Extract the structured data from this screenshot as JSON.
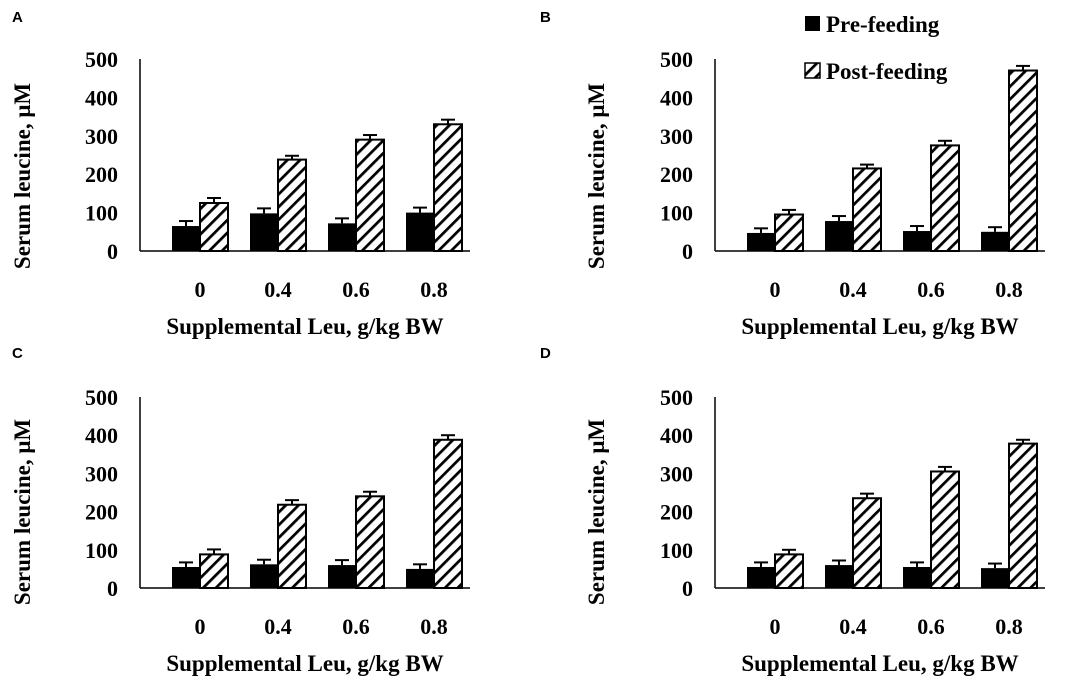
{
  "legend": {
    "items": [
      {
        "label": "Pre-feeding",
        "style": "solid"
      },
      {
        "label": "Post-feeding",
        "style": "hatched"
      }
    ]
  },
  "colors": {
    "bar": "#000000",
    "background": "#ffffff"
  },
  "chart_data": [
    {
      "panel": "A",
      "type": "bar",
      "categories": [
        "0",
        "0.4",
        "0.6",
        "0.8"
      ],
      "series": [
        {
          "name": "Pre-feeding",
          "values": [
            65,
            98,
            72,
            100
          ],
          "errors": [
            13,
            13,
            13,
            13
          ]
        },
        {
          "name": "Post-feeding",
          "values": [
            125,
            238,
            290,
            330
          ],
          "errors": [
            13,
            10,
            12,
            12
          ]
        }
      ],
      "title": "",
      "xlabel": "Supplemental Leu, g/kg BW",
      "ylabel": "Serum leucine, μM",
      "ylim": [
        0,
        500
      ],
      "yticks": [
        0,
        100,
        200,
        300,
        400,
        500
      ],
      "grid": false
    },
    {
      "panel": "B",
      "type": "bar",
      "categories": [
        "0",
        "0.4",
        "0.6",
        "0.8"
      ],
      "series": [
        {
          "name": "Pre-feeding",
          "values": [
            47,
            78,
            52,
            50
          ],
          "errors": [
            12,
            13,
            13,
            12
          ]
        },
        {
          "name": "Post-feeding",
          "values": [
            95,
            215,
            275,
            470
          ],
          "errors": [
            12,
            10,
            12,
            12
          ]
        }
      ],
      "title": "",
      "xlabel": "Supplemental Leu, g/kg BW",
      "ylabel": "Serum leucine, μM",
      "ylim": [
        0,
        500
      ],
      "yticks": [
        0,
        100,
        200,
        300,
        400,
        500
      ],
      "grid": false
    },
    {
      "panel": "C",
      "type": "bar",
      "categories": [
        "0",
        "0.4",
        "0.6",
        "0.8"
      ],
      "series": [
        {
          "name": "Pre-feeding",
          "values": [
            55,
            62,
            60,
            50
          ],
          "errors": [
            12,
            12,
            13,
            12
          ]
        },
        {
          "name": "Post-feeding",
          "values": [
            88,
            218,
            240,
            388
          ],
          "errors": [
            13,
            12,
            12,
            12
          ]
        }
      ],
      "title": "",
      "xlabel": "Supplemental Leu, g/kg BW",
      "ylabel": "Serum leucine, μM",
      "ylim": [
        0,
        500
      ],
      "yticks": [
        0,
        100,
        200,
        300,
        400,
        500
      ],
      "grid": false
    },
    {
      "panel": "D",
      "type": "bar",
      "categories": [
        "0",
        "0.4",
        "0.6",
        "0.8"
      ],
      "series": [
        {
          "name": "Pre-feeding",
          "values": [
            55,
            60,
            55,
            52
          ],
          "errors": [
            12,
            12,
            12,
            12
          ]
        },
        {
          "name": "Post-feeding",
          "values": [
            88,
            235,
            305,
            378
          ],
          "errors": [
            12,
            12,
            12,
            10
          ]
        }
      ],
      "title": "",
      "xlabel": "Supplemental Leu, g/kg BW",
      "ylabel": "Serum leucine, μM",
      "ylim": [
        0,
        500
      ],
      "yticks": [
        0,
        100,
        200,
        300,
        400,
        500
      ],
      "grid": false
    }
  ]
}
